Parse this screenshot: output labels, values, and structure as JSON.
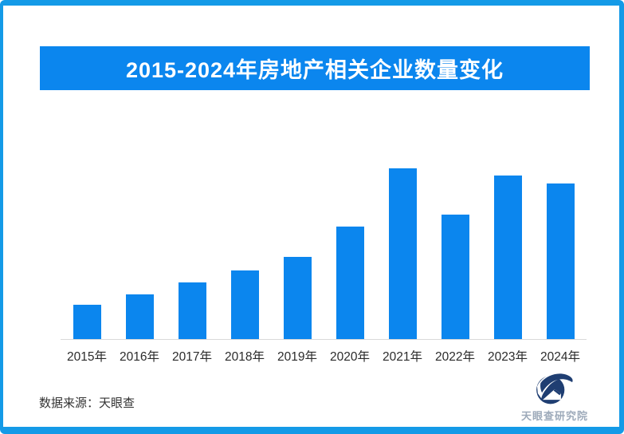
{
  "header": {
    "title": "2015-2024年房地产相关企业数量变化"
  },
  "chart_data": {
    "type": "bar",
    "title": "2015-2024年房地产相关企业数量变化",
    "categories": [
      "2015年",
      "2016年",
      "2017年",
      "2018年",
      "2019年",
      "2020年",
      "2021年",
      "2022年",
      "2023年",
      "2024年"
    ],
    "values": [
      20,
      26,
      33,
      40,
      48,
      66,
      100,
      73,
      96,
      91
    ],
    "xlabel": "",
    "ylabel": "",
    "ylim": [
      0,
      100
    ],
    "grid": false,
    "legend_position": "none",
    "bar_color": "#0b86ee"
  },
  "footer": {
    "source": "数据来源：天眼查",
    "logo_text": "天眼查研究院"
  },
  "icons": {
    "logo": "tianyancha-logo-icon"
  },
  "colors": {
    "bar": "#0b86ee",
    "banner": "#0b86ee",
    "frame_border": "#149ae7",
    "axis_line": "#d9d9d9",
    "title_text": "#ffffff",
    "tick_text": "#2b2b2b",
    "source_text": "#333333",
    "logo_navy": "#1f3e72",
    "logo_text_color": "#9daaba"
  }
}
